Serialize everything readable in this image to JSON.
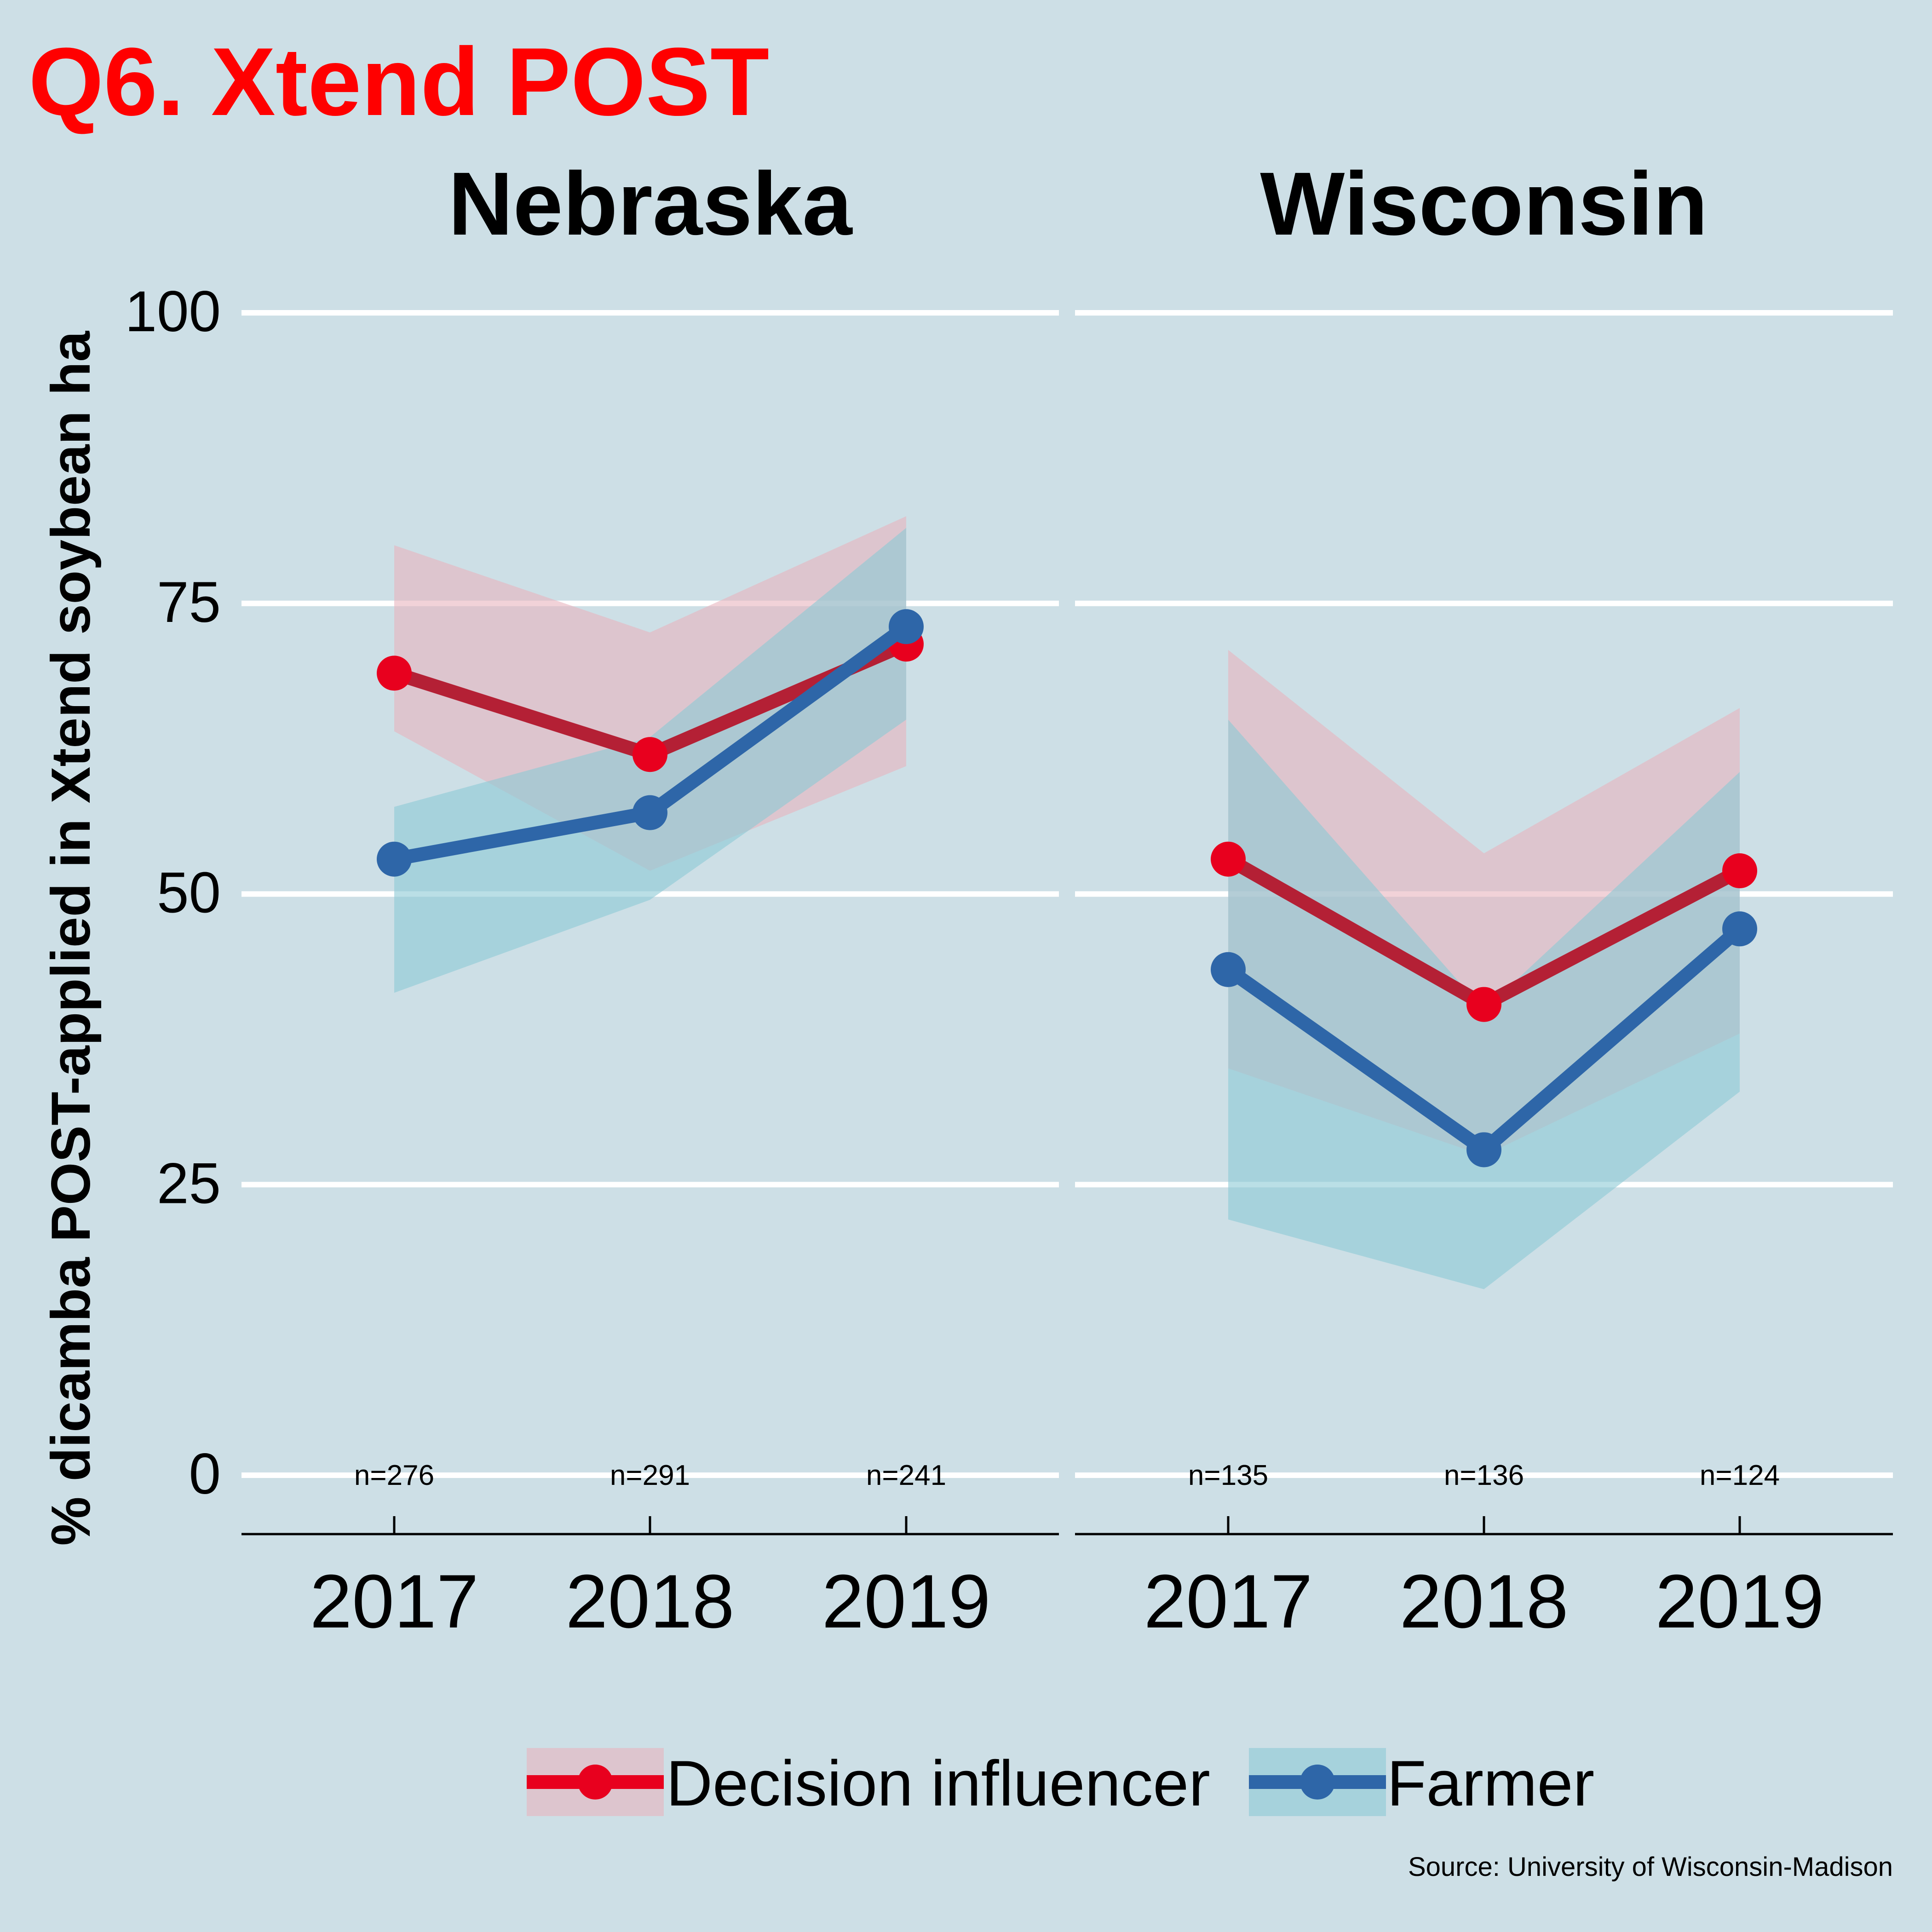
{
  "title": "Q6. Xtend POST",
  "ylabel": "% dicamba POST-applied in Xtend soybean ha",
  "source": "Source: University of Wisconsin-Madison",
  "colors": {
    "background": "#cddfe6",
    "title": "#ff0000",
    "grid": "#ffffff",
    "decision_influencer_line": "#b42035",
    "decision_influencer_point": "#e8001e",
    "decision_influencer_band": "#e8b4be",
    "farmer_line": "#2e66a8",
    "farmer_point": "#2e66a8",
    "farmer_band": "#8ccad6"
  },
  "legend": {
    "placement": "bottom",
    "items": [
      {
        "key": "decision",
        "label": "Decision influencer"
      },
      {
        "key": "farmer",
        "label": "Farmer"
      }
    ]
  },
  "chart_data": {
    "type": "line",
    "ylim": [
      0,
      100
    ],
    "yticks": [
      "0",
      "25",
      "50",
      "75",
      "100"
    ],
    "x": [
      "2017",
      "2018",
      "2019"
    ],
    "grid": "horizontal",
    "panels": [
      {
        "title": "Nebraska",
        "n_labels": [
          "n=276",
          "n=291",
          "n=241"
        ],
        "series": [
          {
            "name": "Decision influencer",
            "key": "decision",
            "values": [
              69,
              62,
              71.5
            ],
            "lower": [
              64,
              52,
              61
            ],
            "upper": [
              80,
              72.5,
              82.5
            ]
          },
          {
            "name": "Farmer",
            "key": "farmer",
            "values": [
              53,
              57,
              73
            ],
            "lower": [
              41.5,
              49.5,
              65
            ],
            "upper": [
              57.5,
              63.5,
              81.5
            ]
          }
        ]
      },
      {
        "title": "Wisconsin",
        "n_labels": [
          "n=135",
          "n=136",
          "n=124"
        ],
        "series": [
          {
            "name": "Decision influencer",
            "key": "decision",
            "values": [
              53,
              40.5,
              52
            ],
            "lower": [
              35,
              27.5,
              38
            ],
            "upper": [
              71,
              53.5,
              66
            ]
          },
          {
            "name": "Farmer",
            "key": "farmer",
            "values": [
              43.5,
              28,
              47
            ],
            "lower": [
              22,
              16,
              33
            ],
            "upper": [
              65,
              40,
              60.5
            ]
          }
        ]
      }
    ]
  }
}
